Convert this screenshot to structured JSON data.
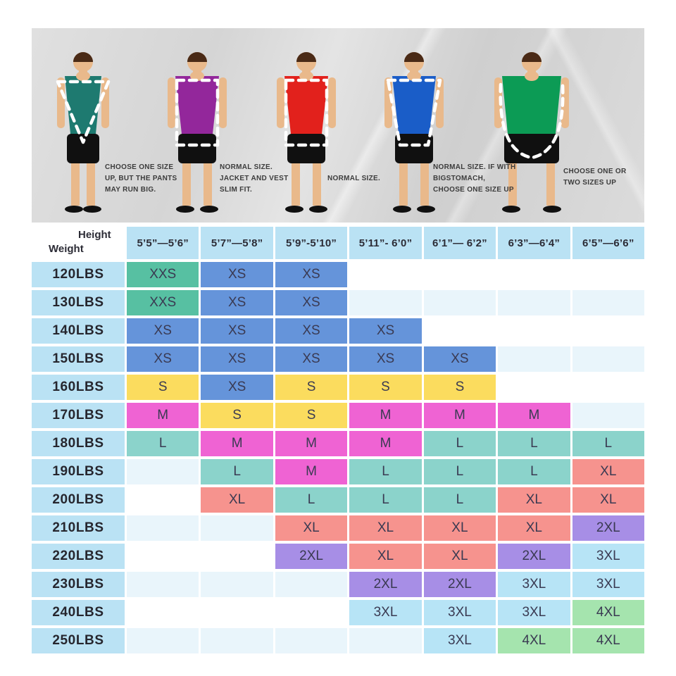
{
  "banner": {
    "figures": [
      {
        "label": "slim-build-figure",
        "build": "slim",
        "overlay": "triangle",
        "shirt_color": "#1e7a70",
        "note": "CHOOSE ONE SIZE UP, BUT THE PANTS MAY RUN BIG."
      },
      {
        "label": "athletic-build-figure",
        "build": "normal",
        "overlay": "rect",
        "shirt_color": "#93279b",
        "note": "NORMAL SIZE. JACKET AND VEST SLIM FIT."
      },
      {
        "label": "normal-build-figure",
        "build": "normal",
        "overlay": "rect",
        "shirt_color": "#e2211c",
        "note": "NORMAL SIZE."
      },
      {
        "label": "taper-build-figure",
        "build": "normal",
        "overlay": "taper",
        "shirt_color": "#1a5dc8",
        "note": "NORMAL SIZE. IF WITH BIGSTOMACH, CHOOSE ONE SIZE UP"
      },
      {
        "label": "big-build-figure",
        "build": "big",
        "overlay": "round",
        "shirt_color": "#0c9b55",
        "note": "CHOOSE ONE OR TWO SIZES UP"
      }
    ]
  },
  "chart_data": {
    "type": "table",
    "corner": {
      "col_axis": "Height",
      "row_axis": "Weight"
    },
    "columns": [
      "5’5”—5’6”",
      "5’7”—5’8”",
      "5’9”-5’10”",
      "5’11”- 6’0”",
      "6’1”— 6’2”",
      "6’3”—6’4”",
      "6’5”—6’6”"
    ],
    "rows": [
      {
        "weight": "120LBS",
        "sizes": [
          "XXS",
          "XS",
          "XS",
          "",
          "",
          "",
          ""
        ]
      },
      {
        "weight": "130LBS",
        "sizes": [
          "XXS",
          "XS",
          "XS",
          "",
          "",
          "",
          ""
        ]
      },
      {
        "weight": "140LBS",
        "sizes": [
          "XS",
          "XS",
          "XS",
          "XS",
          "",
          "",
          ""
        ]
      },
      {
        "weight": "150LBS",
        "sizes": [
          "XS",
          "XS",
          "XS",
          "XS",
          "XS",
          "",
          ""
        ]
      },
      {
        "weight": "160LBS",
        "sizes": [
          "S",
          "XS",
          "S",
          "S",
          "S",
          "",
          ""
        ]
      },
      {
        "weight": "170LBS",
        "sizes": [
          "M",
          "S",
          "S",
          "M",
          "M",
          "M",
          ""
        ]
      },
      {
        "weight": "180LBS",
        "sizes": [
          "L",
          "M",
          "M",
          "M",
          "L",
          "L",
          "L"
        ]
      },
      {
        "weight": "190LBS",
        "sizes": [
          "",
          "L",
          "M",
          "L",
          "L",
          "L",
          "XL"
        ]
      },
      {
        "weight": "200LBS",
        "sizes": [
          "",
          "XL",
          "L",
          "L",
          "L",
          "XL",
          "XL"
        ]
      },
      {
        "weight": "210LBS",
        "sizes": [
          "",
          "",
          "XL",
          "XL",
          "XL",
          "XL",
          "2XL"
        ]
      },
      {
        "weight": "220LBS",
        "sizes": [
          "",
          "",
          "2XL",
          "XL",
          "XL",
          "2XL",
          "3XL"
        ]
      },
      {
        "weight": "230LBS",
        "sizes": [
          "",
          "",
          "",
          "2XL",
          "2XL",
          "3XL",
          "3XL"
        ]
      },
      {
        "weight": "240LBS",
        "sizes": [
          "",
          "",
          "",
          "3XL",
          "3XL",
          "3XL",
          "4XL"
        ]
      },
      {
        "weight": "250LBS",
        "sizes": [
          "",
          "",
          "",
          "",
          "3XL",
          "4XL",
          "4XL"
        ]
      }
    ],
    "size_colors": {
      "XXS": "#57c0a2",
      "XS": "#6594da",
      "S": "#fbdc5e",
      "M": "#ef63d3",
      "L": "#8bd3cb",
      "XL": "#f6938e",
      "2XL": "#a78ee6",
      "3XL": "#b7e4f6",
      "4XL": "#a5e4ae"
    },
    "header_bg": "#bae2f4"
  }
}
